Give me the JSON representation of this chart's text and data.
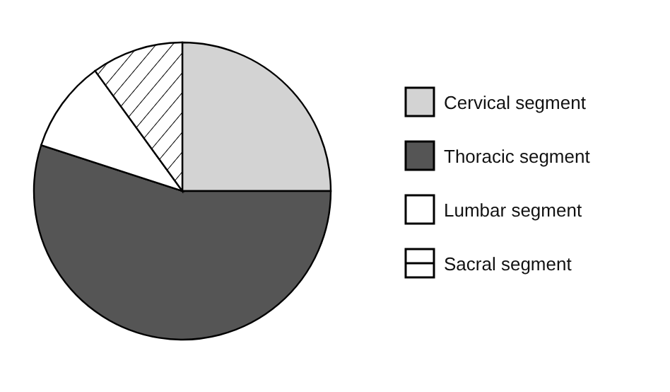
{
  "chart_data": {
    "type": "pie",
    "categories": [
      "Cervical segment",
      "Thoracic segment",
      "Lumbar segment",
      "Sacral segment"
    ],
    "values": [
      25,
      55,
      10,
      10
    ],
    "colors": [
      "#d3d3d3",
      "#555555",
      "#ffffff",
      "#ffffff"
    ],
    "legend": "right"
  }
}
